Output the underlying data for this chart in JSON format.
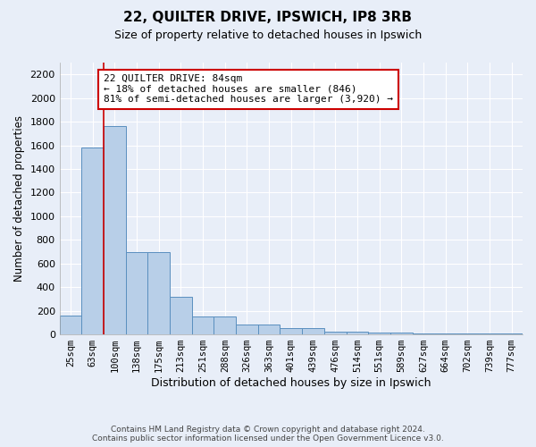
{
  "title": "22, QUILTER DRIVE, IPSWICH, IP8 3RB",
  "subtitle": "Size of property relative to detached houses in Ipswich",
  "xlabel": "Distribution of detached houses by size in Ipswich",
  "ylabel": "Number of detached properties",
  "bar_labels": [
    "25sqm",
    "63sqm",
    "100sqm",
    "138sqm",
    "175sqm",
    "213sqm",
    "251sqm",
    "288sqm",
    "326sqm",
    "363sqm",
    "401sqm",
    "439sqm",
    "476sqm",
    "514sqm",
    "551sqm",
    "589sqm",
    "627sqm",
    "664sqm",
    "702sqm",
    "739sqm",
    "777sqm"
  ],
  "bar_values": [
    160,
    1580,
    1760,
    700,
    700,
    320,
    155,
    155,
    85,
    85,
    50,
    50,
    25,
    20,
    15,
    12,
    10,
    8,
    6,
    5,
    5
  ],
  "bar_color": "#b8cfe8",
  "bar_edge_color": "#5a8fbf",
  "bg_color": "#e8eef8",
  "grid_color": "#ffffff",
  "red_line_index": 2,
  "annotation_text": "22 QUILTER DRIVE: 84sqm\n← 18% of detached houses are smaller (846)\n81% of semi-detached houses are larger (3,920) →",
  "annotation_box_color": "#ffffff",
  "annotation_box_edge": "#cc0000",
  "footer_text": "Contains HM Land Registry data © Crown copyright and database right 2024.\nContains public sector information licensed under the Open Government Licence v3.0.",
  "ylim": [
    0,
    2300
  ],
  "yticks": [
    0,
    200,
    400,
    600,
    800,
    1000,
    1200,
    1400,
    1600,
    1800,
    2000,
    2200
  ]
}
